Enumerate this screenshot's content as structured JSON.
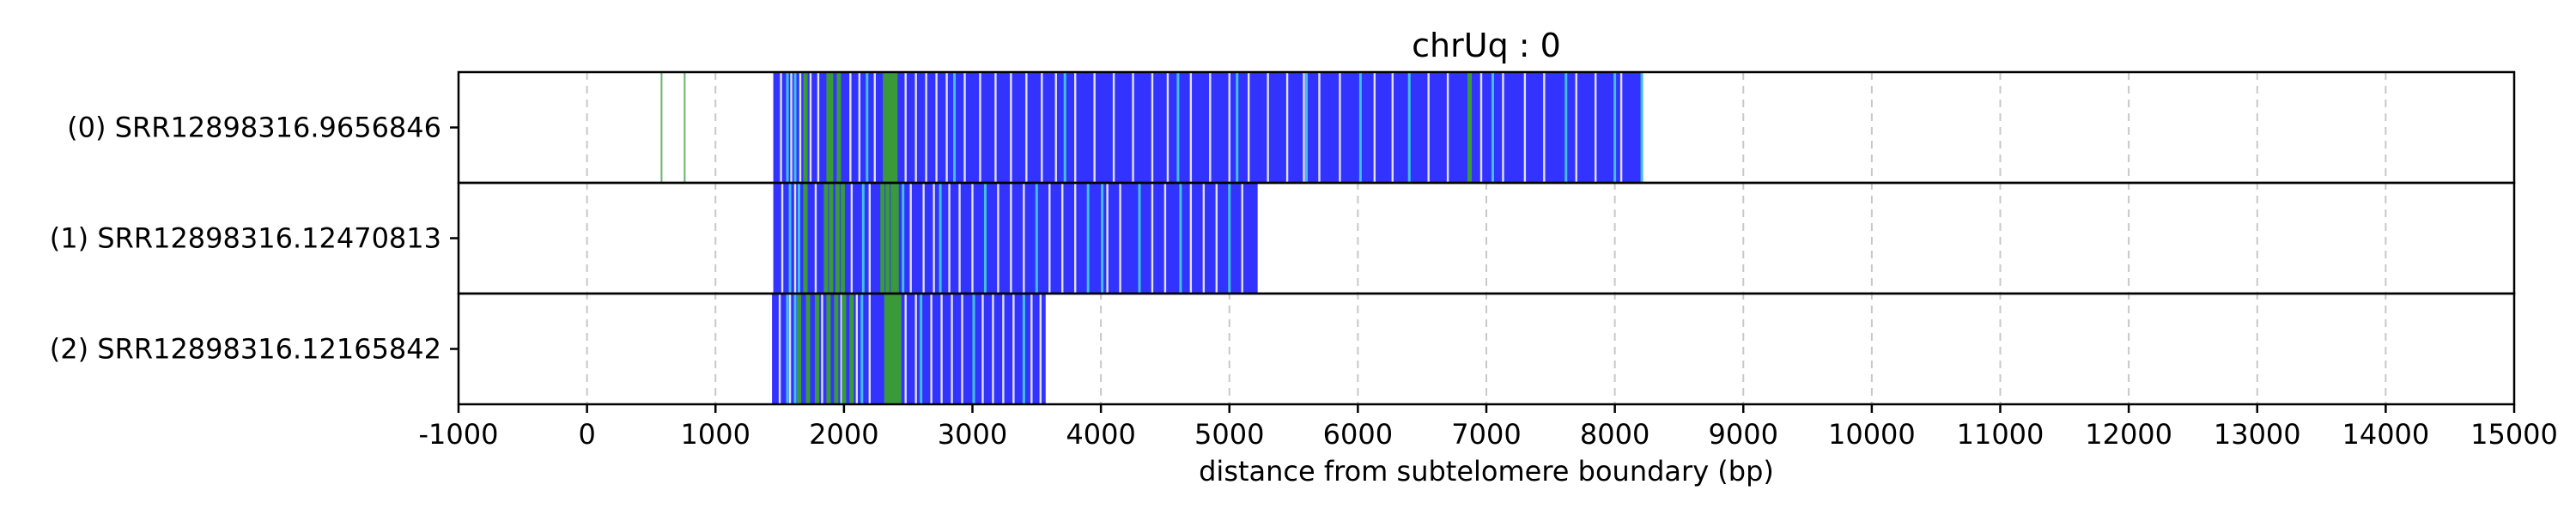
{
  "chart_data": {
    "type": "bar",
    "title": "chrUq : 0",
    "xlabel": "distance from subtelomere boundary (bp)",
    "ylabel": "",
    "xlim": [
      -1000,
      15000
    ],
    "x_ticks": [
      -1000,
      0,
      1000,
      2000,
      3000,
      4000,
      5000,
      6000,
      7000,
      8000,
      9000,
      10000,
      11000,
      12000,
      13000,
      14000,
      15000
    ],
    "x_tick_labels": [
      "-1000",
      "0",
      "1000",
      "2000",
      "3000",
      "4000",
      "5000",
      "6000",
      "7000",
      "8000",
      "9000",
      "10000",
      "11000",
      "12000",
      "13000",
      "14000",
      "15000"
    ],
    "grid": "vertical-dashed",
    "colors": {
      "blue": "#3333ff",
      "green": "#3a9a3a",
      "cyan": "#40c0e0",
      "gap": "#ffffff",
      "grid": "#c8c8c8"
    },
    "reads": [
      {
        "label": "(0) SRR12898316.9656846",
        "extent": [
          1450,
          8220
        ],
        "green_marks": [
          580,
          760,
          1700,
          1880,
          1900,
          1960,
          2320,
          2350,
          2380,
          2400,
          6870
        ],
        "cyan_marks": [
          1560,
          1620,
          2180,
          2860,
          3720,
          4600,
          5060,
          5600,
          6020,
          6400,
          7050,
          7620,
          8000,
          8210
        ],
        "gaps": [
          1510,
          1590,
          1660,
          1740,
          1800,
          2050,
          2120,
          2240,
          2480,
          2560,
          2640,
          2720,
          2800,
          2940,
          3060,
          3180,
          3300,
          3420,
          3540,
          3650,
          3800,
          3950,
          4100,
          4250,
          4400,
          4520,
          4700,
          4850,
          5000,
          5150,
          5300,
          5450,
          5580,
          5700,
          5860,
          6130,
          6270,
          6550,
          6700,
          6960,
          7130,
          7300,
          7450,
          7700,
          7850,
          8050
        ]
      },
      {
        "label": "(1) SRR12898316.12470813",
        "extent": [
          1450,
          5220
        ],
        "green_marks": [
          1700,
          1860,
          1900,
          1950,
          1990,
          2300,
          2340,
          2380,
          2410
        ],
        "cyan_marks": [
          1580,
          1650,
          2150,
          2460,
          2750,
          3100,
          3500,
          3900,
          4010,
          4300,
          4620,
          5000
        ],
        "gaps": [
          1520,
          1620,
          1780,
          2060,
          2200,
          2520,
          2620,
          2700,
          2820,
          2900,
          3000,
          3200,
          3300,
          3400,
          3600,
          3700,
          3800,
          4050,
          4150,
          4400,
          4500,
          4700,
          4800,
          4900,
          5100
        ]
      },
      {
        "label": "(2) SRR12898316.12165842",
        "extent": [
          1440,
          3570
        ],
        "green_marks": [
          1650,
          1720,
          1790,
          1880,
          1940,
          2000,
          2060,
          2330,
          2350,
          2370,
          2390,
          2410,
          2430
        ],
        "cyan_marks": [
          1560,
          1620,
          2140,
          2600,
          3010,
          3400
        ],
        "gaps": [
          1500,
          1580,
          1830,
          1980,
          2100,
          2200,
          2480,
          2560,
          2680,
          2760,
          2840,
          2920,
          3080,
          3160,
          3240,
          3320,
          3460,
          3530
        ]
      }
    ]
  }
}
